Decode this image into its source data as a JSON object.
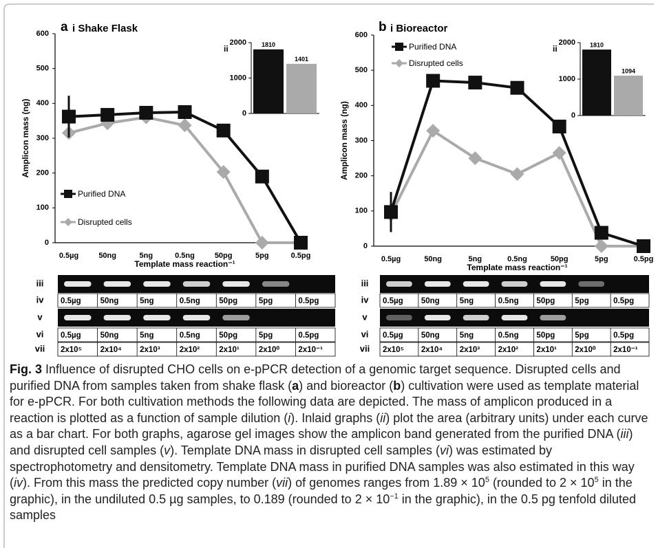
{
  "chart_data": [
    {
      "type": "line",
      "panel_label": "a",
      "title": "i Shake Flask",
      "y_label": "Amplicon mass (ng)",
      "x_label": "Template mass reaction⁻¹",
      "categories": [
        "0.5µg",
        "50ng",
        "5ng",
        "0.5ng",
        "50pg",
        "5pg",
        "0.5pg"
      ],
      "series": [
        {
          "name": "Purified DNA",
          "color": "#111111",
          "marker": "square",
          "values": [
            362,
            367,
            373,
            375,
            322,
            190,
            0
          ],
          "errors": [
            60,
            null,
            null,
            null,
            null,
            null,
            null
          ]
        },
        {
          "name": "Disrupted cells",
          "color": "#aaaaaa",
          "marker": "diamond",
          "values": [
            315,
            343,
            360,
            337,
            203,
            0,
            0
          ]
        }
      ],
      "ylim": [
        0,
        600
      ],
      "yticks": [
        0,
        100,
        200,
        300,
        400,
        500,
        600
      ],
      "legend": "bottom-left"
    },
    {
      "type": "bar",
      "label": "ii",
      "values": [
        1810,
        1401
      ],
      "colors": [
        "#111111",
        "#aaaaaa"
      ],
      "ylim": [
        0,
        2000
      ],
      "yticks": [
        0,
        1000,
        2000
      ]
    },
    {
      "type": "line",
      "panel_label": "b",
      "title": "i Bioreactor",
      "y_label": "Amplicon mass (ng)",
      "x_label": "Template mass reaction⁻¹",
      "categories": [
        "0.5µg",
        "50ng",
        "5ng",
        "0.5ng",
        "50pg",
        "5pg",
        "0.5pg"
      ],
      "series": [
        {
          "name": "Purified DNA",
          "color": "#111111",
          "marker": "square",
          "values": [
            97,
            470,
            465,
            450,
            340,
            38,
            0
          ],
          "errors": [
            57,
            null,
            null,
            null,
            null,
            null,
            null
          ]
        },
        {
          "name": "Disrupted cells",
          "color": "#aaaaaa",
          "marker": "diamond",
          "values": [
            90,
            328,
            250,
            205,
            265,
            0,
            0
          ]
        }
      ],
      "ylim": [
        0,
        600
      ],
      "yticks": [
        0,
        100,
        200,
        300,
        400,
        500,
        600
      ],
      "legend": "top-left"
    },
    {
      "type": "bar",
      "label": "ii",
      "values": [
        1810,
        1094
      ],
      "colors": [
        "#111111",
        "#aaaaaa"
      ],
      "ylim": [
        0,
        2000
      ],
      "yticks": [
        0,
        1000,
        2000
      ]
    }
  ],
  "gels": [
    {
      "rows": [
        {
          "label": "iii"
        },
        {
          "label": "iv",
          "cells": [
            "0.5µg",
            "50ng",
            "5ng",
            "0.5ng",
            "50pg",
            "5pg",
            "0.5pg"
          ]
        },
        {
          "label": "v"
        },
        {
          "label": "vi",
          "cells": [
            "0.5µg",
            "50ng",
            "5ng",
            "0.5ng",
            "50pg",
            "5pg",
            "0.5pg"
          ]
        },
        {
          "label": "vii",
          "cells": [
            "2x10⁵",
            "2x10⁴",
            "2x10³",
            "2x10²",
            "2x10¹",
            "2x10⁰",
            "2x10⁻¹"
          ]
        }
      ]
    },
    {
      "rows": [
        {
          "label": "iii"
        },
        {
          "label": "iv",
          "cells": [
            "0.5µg",
            "50ng",
            "5ng",
            "0.5ng",
            "50pg",
            "5pg",
            "0.5pg"
          ]
        },
        {
          "label": "v"
        },
        {
          "label": "vi",
          "cells": [
            "0.5µg",
            "50ng",
            "5ng",
            "0.5ng",
            "50pg",
            "5pg",
            "0.5pg"
          ]
        },
        {
          "label": "vii",
          "cells": [
            "2x10⁵",
            "2x10⁴",
            "2x10³",
            "2x10²",
            "2x10¹",
            "2x10⁰",
            "2x10⁻¹"
          ]
        }
      ]
    }
  ],
  "caption": {
    "runs": [
      {
        "text": "Fig. 3",
        "style": "bold"
      },
      {
        "text": " Influence of disrupted CHO cells on e-pPCR detection of a genomic target sequence. Disrupted cells and purified DNA from samples taken from shake flask ("
      },
      {
        "text": "a",
        "style": "bold"
      },
      {
        "text": ") and bioreactor ("
      },
      {
        "text": "b",
        "style": "bold"
      },
      {
        "text": ") cultivation were used as template material for e-pPCR. For both cultivation methods the following data are depicted. The mass of amplicon produced in a reaction is plotted as a function of sample dilution ("
      },
      {
        "text": "i",
        "style": "italic"
      },
      {
        "text": "). Inlaid graphs ("
      },
      {
        "text": "ii",
        "style": "italic"
      },
      {
        "text": ") plot the area (arbitrary units) under each curve as a bar chart. For both graphs, agarose gel images show the amplicon band generated from the purified DNA ("
      },
      {
        "text": "iii",
        "style": "italic"
      },
      {
        "text": ") and disrupted cell samples ("
      },
      {
        "text": "v",
        "style": "italic"
      },
      {
        "text": "). Template DNA mass in disrupted cell samples ("
      },
      {
        "text": "vi",
        "style": "italic"
      },
      {
        "text": ") was estimated by spectrophotometry and densitometry. Template DNA mass in purified DNA samples was also estimated in this way ("
      },
      {
        "text": "iv",
        "style": "italic"
      },
      {
        "text": "). From this mass the predicted copy number ("
      },
      {
        "text": "vii",
        "style": "italic"
      },
      {
        "text": ") of genomes ranges from 1.89 × 10"
      },
      {
        "text": "5",
        "style": "sup"
      },
      {
        "text": " (rounded to 2 × 10"
      },
      {
        "text": "5",
        "style": "sup"
      },
      {
        "text": " in the graphic), in the undiluted 0.5 µg samples, to 0.189 (rounded to 2 × 10"
      },
      {
        "text": "−1",
        "style": "sup"
      },
      {
        "text": " in the graphic), in the 0.5 pg tenfold diluted samples"
      }
    ]
  }
}
